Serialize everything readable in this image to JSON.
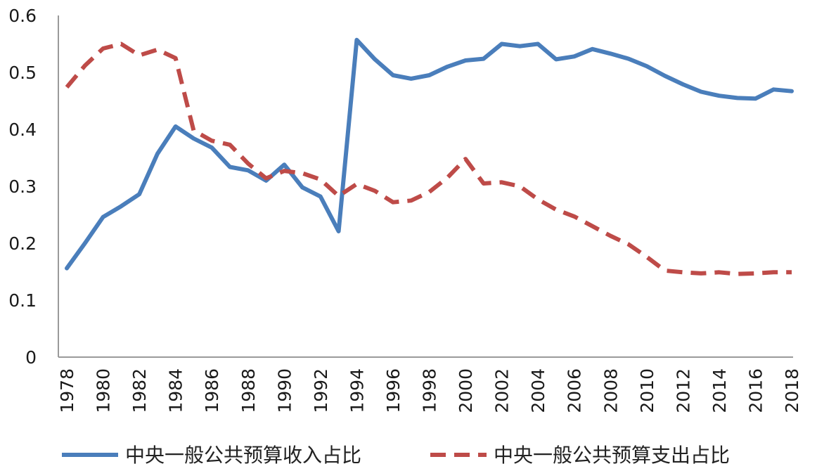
{
  "chart_data": {
    "type": "line",
    "title": "",
    "xlabel": "",
    "ylabel": "",
    "ylim": [
      0,
      0.6
    ],
    "xlim": [
      1978,
      2018
    ],
    "yticks": [
      "0",
      "0.1",
      "0.2",
      "0.3",
      "0.4",
      "0.5",
      "0.6"
    ],
    "xticks": [
      "1978",
      "1980",
      "1982",
      "1984",
      "1986",
      "1988",
      "1990",
      "1992",
      "1994",
      "1996",
      "1998",
      "2000",
      "2002",
      "2004",
      "2006",
      "2008",
      "2010",
      "2012",
      "2014",
      "2016",
      "2018"
    ],
    "grid": false,
    "legend": "bottom",
    "x": [
      1978,
      1979,
      1980,
      1981,
      1982,
      1983,
      1984,
      1985,
      1986,
      1987,
      1988,
      1989,
      1990,
      1991,
      1992,
      1993,
      1994,
      1995,
      1996,
      1997,
      1998,
      1999,
      2000,
      2001,
      2002,
      2003,
      2004,
      2005,
      2006,
      2007,
      2008,
      2009,
      2010,
      2011,
      2012,
      2013,
      2014,
      2015,
      2016,
      2017,
      2018
    ],
    "series": [
      {
        "name": "中央一般公共预算收入占比",
        "color": "#4a7ebb",
        "style": "solid",
        "values": [
          0.156,
          0.2,
          0.246,
          0.265,
          0.286,
          0.357,
          0.405,
          0.384,
          0.368,
          0.334,
          0.328,
          0.31,
          0.338,
          0.298,
          0.282,
          0.221,
          0.557,
          0.523,
          0.495,
          0.489,
          0.495,
          0.51,
          0.521,
          0.524,
          0.55,
          0.546,
          0.55,
          0.523,
          0.528,
          0.541,
          0.533,
          0.524,
          0.511,
          0.494,
          0.479,
          0.466,
          0.459,
          0.455,
          0.454,
          0.47,
          0.467
        ]
      },
      {
        "name": "中央一般公共预算支出占比",
        "color": "#be4b48",
        "style": "dashed",
        "values": [
          0.474,
          0.512,
          0.542,
          0.55,
          0.53,
          0.54,
          0.525,
          0.398,
          0.38,
          0.373,
          0.34,
          0.314,
          0.327,
          0.323,
          0.312,
          0.283,
          0.304,
          0.292,
          0.272,
          0.275,
          0.29,
          0.315,
          0.348,
          0.305,
          0.307,
          0.3,
          0.277,
          0.259,
          0.247,
          0.23,
          0.213,
          0.198,
          0.176,
          0.152,
          0.149,
          0.147,
          0.149,
          0.146,
          0.147,
          0.149,
          0.149
        ]
      }
    ]
  }
}
